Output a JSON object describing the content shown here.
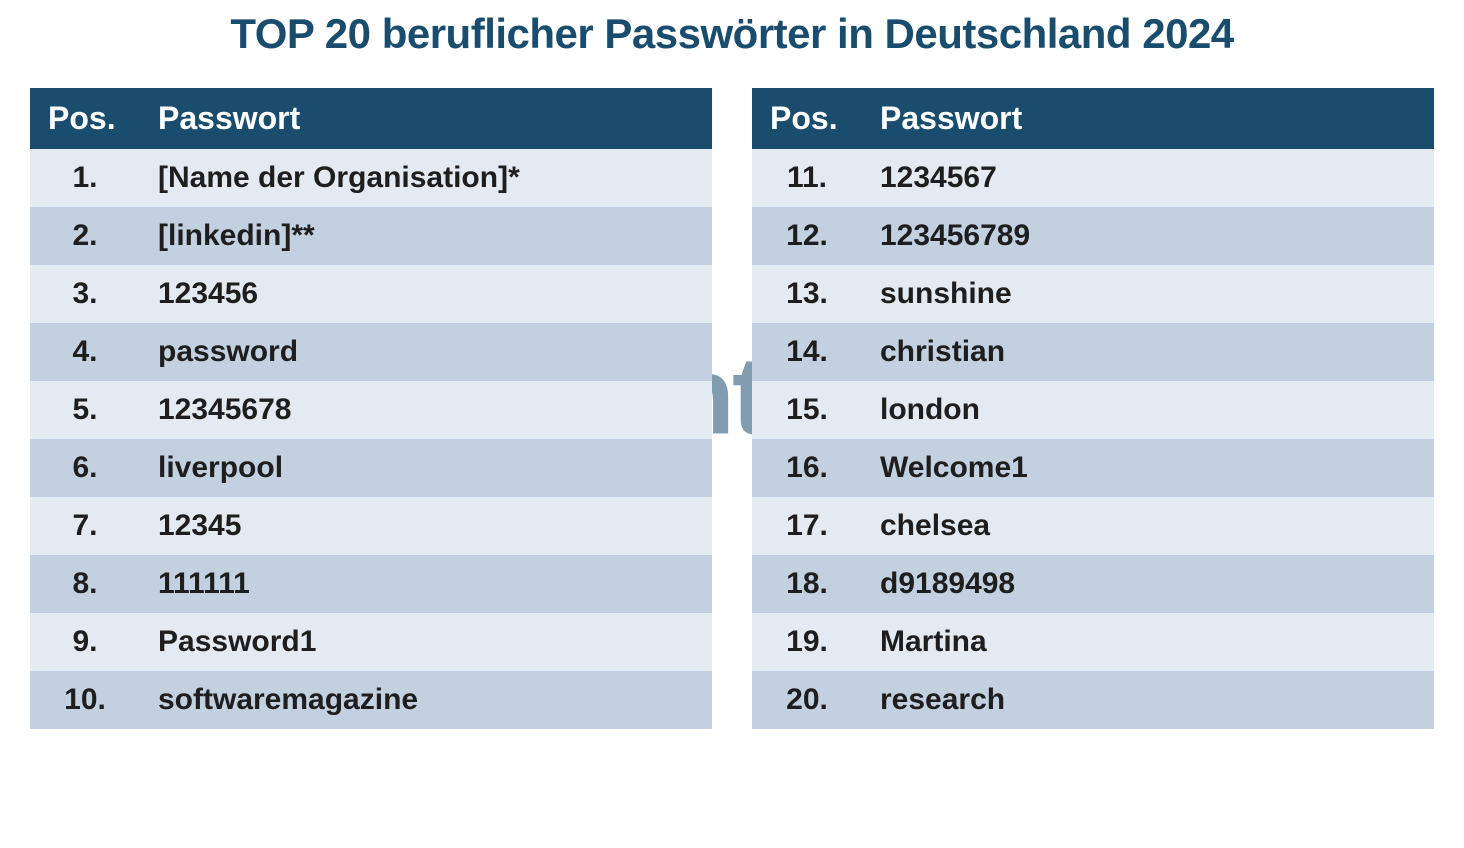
{
  "title": "TOP 20 beruflicher Passwörter in Deutschland 2024",
  "title_color": "#1a4d6d",
  "header_bg": "#1a4d6d",
  "header_fg": "#ffffff",
  "row_even_bg": "#e4eaf2",
  "row_odd_bg": "#c3d0e0",
  "row_fg": "#1e1e1e",
  "columns": {
    "pos": "Pos.",
    "pw": "Passwort"
  },
  "left": [
    {
      "pos": "1.",
      "pw": "[Name der Organisation]*"
    },
    {
      "pos": "2.",
      "pw": "[linkedin]**"
    },
    {
      "pos": "3.",
      "pw": "123456"
    },
    {
      "pos": "4.",
      "pw": "password"
    },
    {
      "pos": "5.",
      "pw": "12345678"
    },
    {
      "pos": "6.",
      "pw": "liverpool"
    },
    {
      "pos": "7.",
      "pw": "12345"
    },
    {
      "pos": "8.",
      "pw": "111111"
    },
    {
      "pos": "9.",
      "pw": "Password1"
    },
    {
      "pos": "10.",
      "pw": "softwaremagazine"
    }
  ],
  "right": [
    {
      "pos": "11.",
      "pw": "1234567"
    },
    {
      "pos": "12.",
      "pw": "123456789"
    },
    {
      "pos": "13.",
      "pw": "sunshine"
    },
    {
      "pos": "14.",
      "pw": "christian"
    },
    {
      "pos": "15.",
      "pw": "london"
    },
    {
      "pos": "16.",
      "pw": "Welcome1"
    },
    {
      "pos": "17.",
      "pw": "chelsea"
    },
    {
      "pos": "18.",
      "pw": "d9189498"
    },
    {
      "pos": "19.",
      "pw": "Martina"
    },
    {
      "pos": "20.",
      "pw": "research"
    }
  ],
  "watermark": {
    "text": "identeco",
    "text_color": "#1a4d6d",
    "dot_color": "#e0b64d",
    "opacity": 0.55
  }
}
